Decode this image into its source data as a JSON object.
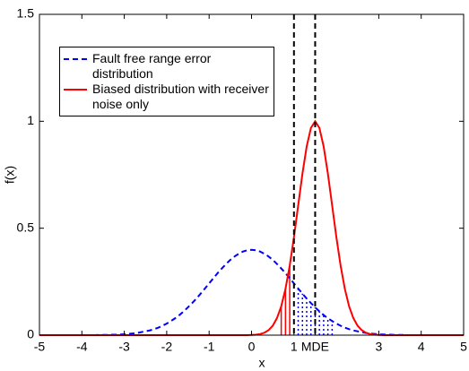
{
  "chart_data": {
    "type": "line",
    "xlabel": "x",
    "ylabel": "f(x)",
    "x": [
      -5,
      -4.9,
      -4.8,
      -4.7,
      -4.6,
      -4.5,
      -4.4,
      -4.3,
      -4.2,
      -4.1,
      -4,
      -3.9,
      -3.8,
      -3.7,
      -3.6,
      -3.5,
      -3.4,
      -3.3,
      -3.2,
      -3.1,
      -3,
      -2.9,
      -2.8,
      -2.7,
      -2.6,
      -2.5,
      -2.4,
      -2.3,
      -2.2,
      -2.1,
      -2,
      -1.9,
      -1.8,
      -1.7,
      -1.6,
      -1.5,
      -1.4,
      -1.3,
      -1.2,
      -1.1,
      -1,
      -0.9,
      -0.8,
      -0.7,
      -0.6,
      -0.5,
      -0.4,
      -0.3,
      -0.2,
      -0.1,
      0,
      0.1,
      0.2,
      0.3,
      0.4,
      0.5,
      0.6,
      0.7,
      0.8,
      0.9,
      1,
      1.1,
      1.2,
      1.3,
      1.4,
      1.5,
      1.6,
      1.7,
      1.8,
      1.9,
      2,
      2.1,
      2.2,
      2.3,
      2.4,
      2.5,
      2.6,
      2.7,
      2.8,
      2.9,
      3,
      3.1,
      3.2,
      3.3,
      3.4,
      3.5,
      3.6,
      3.7,
      3.8,
      3.9,
      4,
      4.1,
      4.2,
      4.3,
      4.4,
      4.5,
      4.6,
      4.7,
      4.8,
      4.9,
      5
    ],
    "series": [
      {
        "name": "Fault free range error distribution",
        "color": "#0000ff",
        "dash": "dashed",
        "shade_range": [
          1,
          2
        ],
        "values": [
          0,
          0,
          0,
          0,
          0,
          0,
          0,
          0,
          0,
          0,
          0,
          0,
          0,
          0,
          0.001,
          0.001,
          0.001,
          0.002,
          0.002,
          0.003,
          0.004,
          0.006,
          0.008,
          0.01,
          0.014,
          0.018,
          0.022,
          0.028,
          0.035,
          0.044,
          0.054,
          0.066,
          0.079,
          0.094,
          0.111,
          0.13,
          0.15,
          0.171,
          0.194,
          0.218,
          0.242,
          0.266,
          0.29,
          0.312,
          0.333,
          0.352,
          0.368,
          0.381,
          0.391,
          0.397,
          0.399,
          0.397,
          0.391,
          0.381,
          0.368,
          0.352,
          0.333,
          0.312,
          0.29,
          0.266,
          0.242,
          0.218,
          0.194,
          0.171,
          0.15,
          0.13,
          0.111,
          0.094,
          0.079,
          0.066,
          0.054,
          0.044,
          0.035,
          0.028,
          0.022,
          0.018,
          0.014,
          0.01,
          0.008,
          0.006,
          0.004,
          0.003,
          0.002,
          0.002,
          0.001,
          0.001,
          0.001,
          0,
          0,
          0,
          0,
          0,
          0,
          0,
          0,
          0,
          0,
          0,
          0,
          0,
          0
        ]
      },
      {
        "name": "Biased distribution with receiver noise only",
        "color": "#ff0000",
        "dash": "solid",
        "shade_range": [
          0.6,
          1
        ],
        "values": [
          0,
          0,
          0,
          0,
          0,
          0,
          0,
          0,
          0,
          0,
          0,
          0,
          0,
          0,
          0,
          0,
          0,
          0,
          0,
          0,
          0,
          0,
          0,
          0,
          0,
          0,
          0,
          0,
          0,
          0,
          0,
          0,
          0,
          0,
          0,
          0,
          0,
          0,
          0,
          0,
          0,
          0,
          0,
          0,
          0,
          0,
          0,
          0,
          0,
          0,
          0.001,
          0.002,
          0.005,
          0.011,
          0.023,
          0.044,
          0.08,
          0.135,
          0.216,
          0.325,
          0.458,
          0.607,
          0.755,
          0.882,
          0.969,
          1,
          0.969,
          0.882,
          0.755,
          0.607,
          0.458,
          0.325,
          0.216,
          0.135,
          0.08,
          0.044,
          0.023,
          0.011,
          0.005,
          0.002,
          0.001,
          0,
          0,
          0,
          0,
          0,
          0,
          0,
          0,
          0,
          0,
          0,
          0,
          0,
          0,
          0,
          0,
          0,
          0,
          0,
          0
        ]
      }
    ],
    "vlines": [
      1,
      1.5
    ],
    "xlim": [
      -5,
      5
    ],
    "ylim": [
      0,
      1.5
    ],
    "xticks": [
      -5,
      -4,
      -3,
      -2,
      -1,
      0,
      1,
      {
        "value": 1.5,
        "label": "MDE"
      },
      3,
      4,
      5
    ],
    "yticks": [
      0,
      {
        "value": 0.5,
        "label": "0.5"
      },
      1,
      {
        "value": 1.5,
        "label": "1.5"
      }
    ],
    "legend": "upper left",
    "grid": false
  }
}
